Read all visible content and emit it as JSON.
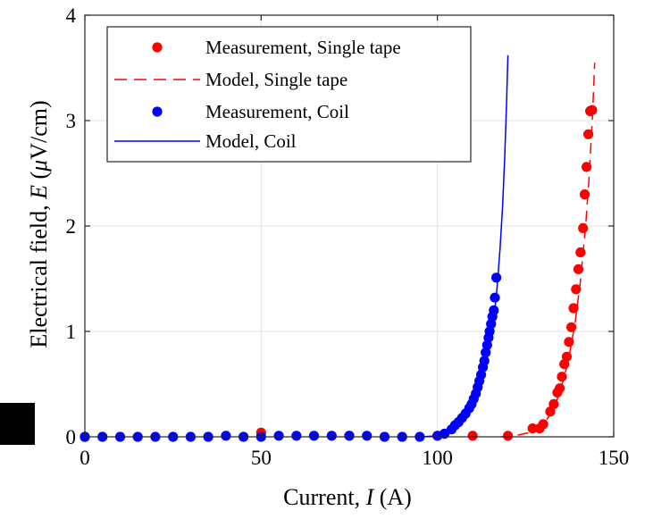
{
  "chart_data": {
    "type": "scatter",
    "xlabel": {
      "prefix": "Current, ",
      "var": "I",
      "suffix": " (A)"
    },
    "ylabel": {
      "prefix": "Electrical field, ",
      "var": "E",
      "suffix_open": " (",
      "mu": "μ",
      "suffix_close": "V/cm)"
    },
    "xlim": [
      0,
      150
    ],
    "ylim": [
      0,
      4
    ],
    "xticks": [
      "0",
      "50",
      "100",
      "150"
    ],
    "yticks": [
      "0",
      "1",
      "2",
      "3",
      "4"
    ],
    "xtick_values": [
      0,
      50,
      100,
      150
    ],
    "ytick_values": [
      0,
      1,
      2,
      3,
      4
    ],
    "grid": true,
    "legend_position": "top-left",
    "series": [
      {
        "name": "Measurement, Single tape",
        "kind": "markers",
        "color": "#ff0000",
        "x": [
          0,
          50,
          75,
          100,
          110,
          120,
          127,
          129,
          130,
          132,
          133,
          134,
          134.7,
          135.3,
          136,
          136.7,
          137.3,
          138,
          138.6,
          139.3,
          140,
          140.6,
          141.3,
          141.8,
          142.3,
          142.8,
          143.3,
          143.9
        ],
        "y": [
          0,
          0.04,
          0.01,
          0.01,
          0.01,
          0.01,
          0.08,
          0.08,
          0.12,
          0.24,
          0.31,
          0.42,
          0.46,
          0.57,
          0.69,
          0.76,
          0.9,
          1.04,
          1.22,
          1.4,
          1.59,
          1.75,
          1.98,
          2.3,
          2.56,
          2.87,
          3.09,
          3.1
        ]
      },
      {
        "name": "Model, Single tape",
        "kind": "dashed-line",
        "color": "#ff0000",
        "x": [
          118,
          122,
          126,
          129,
          131,
          133,
          135,
          137,
          139,
          140.5,
          142,
          143,
          144,
          144.6
        ],
        "y": [
          0,
          0.01,
          0.04,
          0.09,
          0.16,
          0.27,
          0.45,
          0.7,
          1.07,
          1.46,
          1.98,
          2.45,
          3.05,
          3.55
        ]
      },
      {
        "name": "Measurement, Coil",
        "kind": "markers",
        "color": "#0000ff",
        "x": [
          0,
          5,
          10,
          15,
          20,
          25,
          30,
          35,
          40,
          45,
          50,
          55,
          60,
          65,
          70,
          75,
          80,
          85,
          90,
          95,
          100,
          102,
          104,
          105,
          106,
          107,
          108,
          109,
          109.7,
          110.3,
          110.9,
          111.4,
          111.9,
          112.4,
          112.9,
          113.3,
          113.7,
          114.1,
          114.5,
          114.8,
          115.2,
          115.6,
          116,
          116.3,
          116.7
        ],
        "y": [
          0,
          0,
          0,
          0,
          0,
          0,
          0,
          0,
          0.01,
          0,
          0,
          0.01,
          0.01,
          0.01,
          0.01,
          0.01,
          0.01,
          0,
          0,
          0,
          0.01,
          0.03,
          0.07,
          0.11,
          0.14,
          0.18,
          0.22,
          0.27,
          0.31,
          0.36,
          0.41,
          0.47,
          0.53,
          0.59,
          0.66,
          0.72,
          0.8,
          0.87,
          0.94,
          1.0,
          1.07,
          1.14,
          1.2,
          1.32,
          1.51
        ]
      },
      {
        "name": "Model, Coil",
        "kind": "solid-line",
        "color": "#0000ff",
        "x": [
          96,
          100,
          103,
          105,
          107,
          109,
          110.5,
          112,
          113.5,
          114.8,
          116,
          117,
          117.8,
          118.5,
          119.1,
          119.6,
          120
        ],
        "y": [
          0,
          0.01,
          0.03,
          0.07,
          0.13,
          0.23,
          0.32,
          0.47,
          0.65,
          0.87,
          1.1,
          1.45,
          1.8,
          2.2,
          2.65,
          3.15,
          3.62
        ]
      }
    ]
  }
}
